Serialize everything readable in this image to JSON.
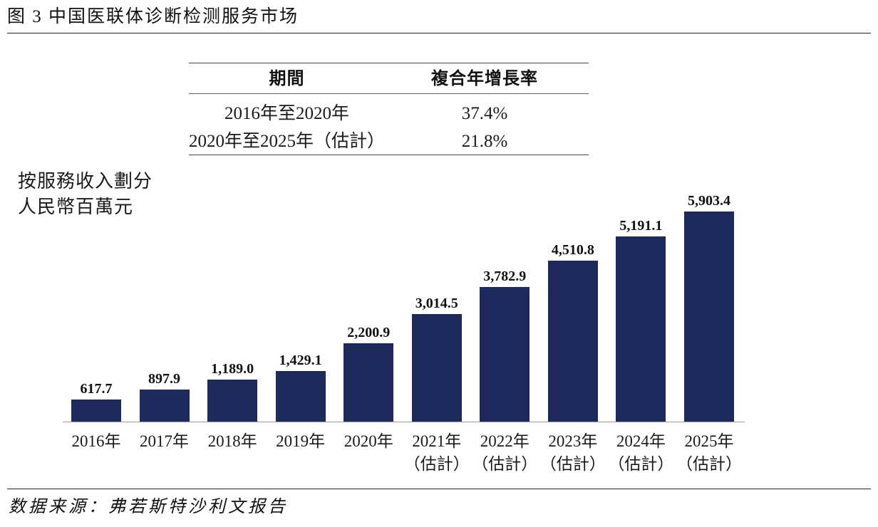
{
  "chart_data": {
    "type": "bar",
    "title": "图 3 中国医联体诊断检测服务市场",
    "ylabel": [
      "按服務收入劃分",
      "人民幣百萬元"
    ],
    "categories": [
      "2016年",
      "2017年",
      "2018年",
      "2019年",
      "2020年",
      "2021年\n（估計）",
      "2022年\n（估計）",
      "2023年\n（估計）",
      "2024年\n（估計）",
      "2025年\n（估計）"
    ],
    "values": [
      617.7,
      897.9,
      1189.0,
      1429.1,
      2200.9,
      3014.5,
      3782.9,
      4510.8,
      5191.1,
      5903.4
    ],
    "data_labels": [
      "617.7",
      "897.9",
      "1,189.0",
      "1,429.1",
      "2,200.9",
      "3,014.5",
      "3,782.9",
      "4,510.8",
      "5,191.1",
      "5,903.4"
    ],
    "ylim": [
      0,
      6000
    ],
    "grid": false
  },
  "cagr_table": {
    "headers": [
      "期間",
      "複合年增長率"
    ],
    "rows": [
      [
        "2016年至2020年",
        "37.4%"
      ],
      [
        "2020年至2025年（估計）",
        "21.8%"
      ]
    ]
  },
  "source": "数据来源：弗若斯特沙利文报告",
  "colors": {
    "bar": "#1f2a5c"
  }
}
